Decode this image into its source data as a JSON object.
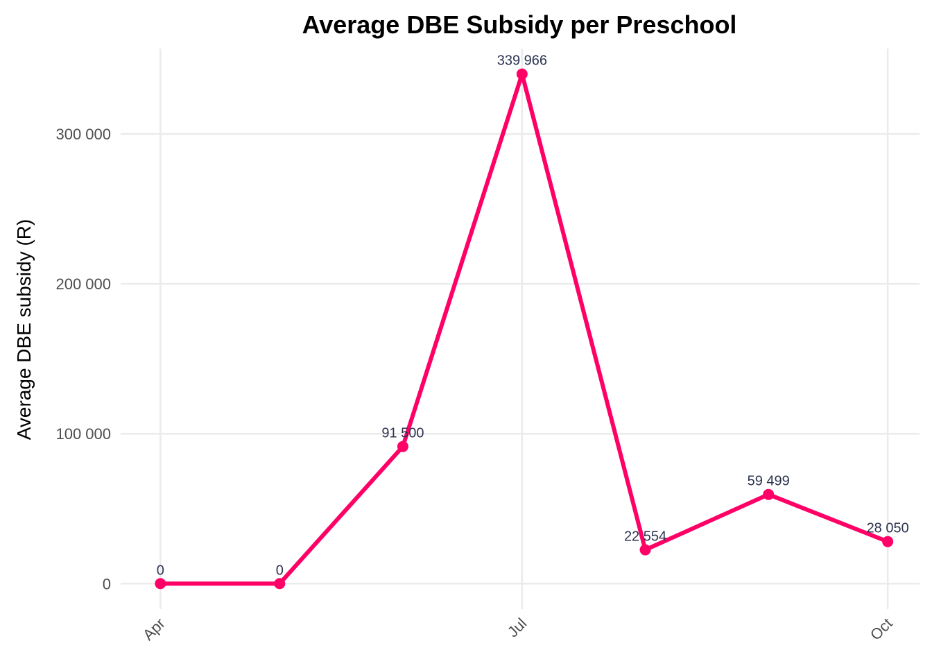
{
  "chart_data": {
    "type": "line",
    "title": "Average DBE Subsidy per Preschool",
    "xlabel": "",
    "ylabel": "Average DBE subsidy (R)",
    "x": [
      "2024-04-01",
      "2024-05-01",
      "2024-06-01",
      "2024-07-01",
      "2024-08-01",
      "2024-09-01",
      "2024-10-01"
    ],
    "x_tick_labels": [
      "Apr",
      "Jul",
      "Oct"
    ],
    "x_tick_values": [
      "2024-04-01",
      "2024-07-01",
      "2024-10-01"
    ],
    "y_tick_labels": [
      "0",
      "100 000",
      "200 000",
      "300 000"
    ],
    "y_tick_values": [
      0,
      100000,
      200000,
      300000
    ],
    "ylim": [
      -16998,
      356964
    ],
    "xlim": [
      "2024-03-22",
      "2024-10-09"
    ],
    "series": [
      {
        "values": [
          0,
          0,
          91500,
          339966,
          22554,
          59499,
          28050
        ],
        "data_labels": [
          "0",
          "0",
          "91 500",
          "339 966",
          "22 554",
          "59 499",
          "28 050"
        ]
      }
    ],
    "grid": true,
    "legend": "none",
    "colors": {
      "line": "#FF0066",
      "label": "#2b3350",
      "grid": "#ebebeb"
    }
  }
}
